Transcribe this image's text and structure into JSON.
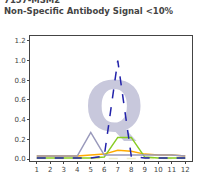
{
  "chart_data": {
    "type": "line",
    "title": "7157-MSM2",
    "subtitle": "Non-Specific Antibody Signal <10%",
    "x": [
      1,
      2,
      3,
      4,
      5,
      6,
      7,
      8,
      9,
      10,
      11,
      12
    ],
    "series": [
      {
        "color": "#eeeecc",
        "line_style": "dashed",
        "values": [
          0.005,
          0.005,
          0.005,
          0.005,
          0.005,
          0.005,
          0.005,
          0.005,
          0.005,
          0.005,
          0.005,
          0.005
        ]
      },
      {
        "color": "#ffaa00",
        "line_style": "solid",
        "values": [
          0.03,
          0.03,
          0.03,
          0.03,
          0.04,
          0.05,
          0.09,
          0.08,
          0.05,
          0.04,
          0.04,
          0.03
        ]
      },
      {
        "color": "#88cc22",
        "line_style": "solid",
        "values": [
          0.01,
          0.01,
          0.01,
          0.01,
          0.01,
          0.02,
          0.22,
          0.22,
          0.02,
          0.01,
          0.01,
          0.01
        ]
      },
      {
        "color": "#9999bb",
        "line_style": "solid",
        "values": [
          0.03,
          0.03,
          0.03,
          0.03,
          0.27,
          0.04,
          0.04,
          0.04,
          0.04,
          0.04,
          0.04,
          0.03
        ]
      },
      {
        "color": "#2222aa",
        "line_style": "dashed",
        "values": [
          0.01,
          0.01,
          0.01,
          0.01,
          0.01,
          0.03,
          1.0,
          0.03,
          0.01,
          0.01,
          0.01,
          0.01
        ]
      }
    ],
    "xlim": [
      0.5,
      12.5
    ],
    "xticks": [
      1,
      2,
      3,
      4,
      5,
      6,
      7,
      8,
      9,
      10,
      11,
      12
    ],
    "ylim": [
      -0.02,
      1.25
    ],
    "yticks": [
      {
        "value": 0,
        "label": "0.0"
      },
      0.2,
      0.4,
      0.6,
      0.8,
      {
        "value": 1.0,
        "label": "1.0"
      },
      1.2
    ],
    "grid": false,
    "annotations": [
      {
        "text": "Q",
        "color": "#c8c8dc"
      }
    ]
  }
}
